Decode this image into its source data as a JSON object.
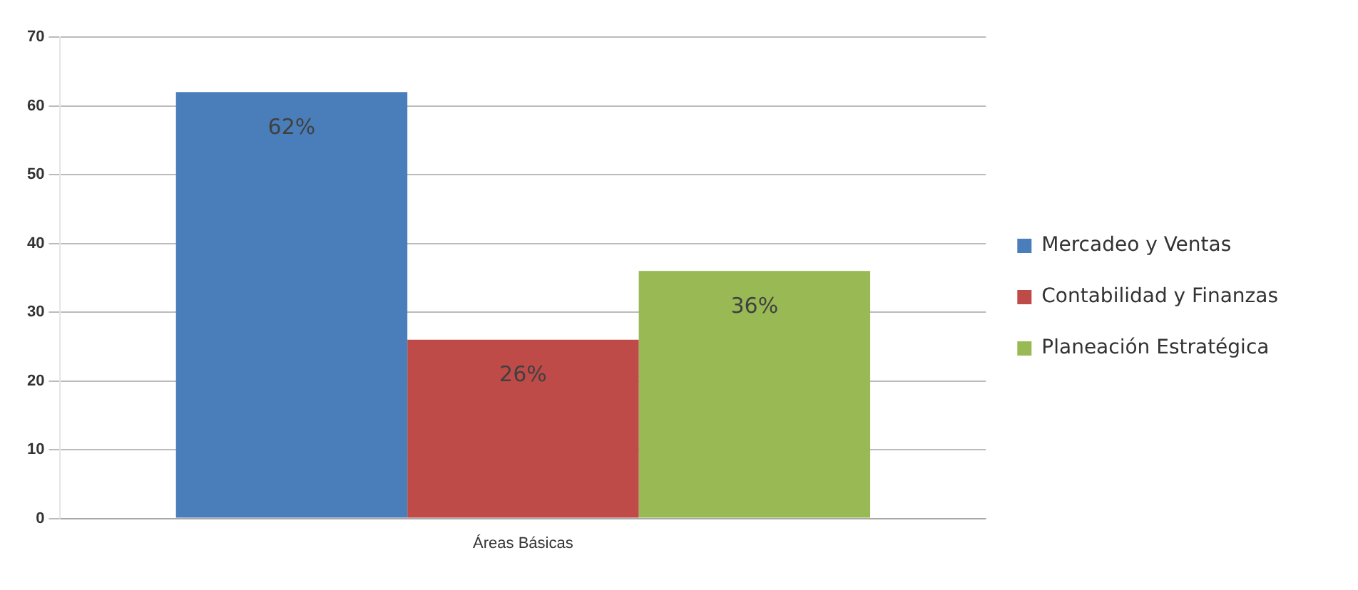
{
  "chart_data": {
    "type": "bar",
    "categories": [
      "Áreas Básicas"
    ],
    "series": [
      {
        "name": "Mercadeo y Ventas",
        "color": "#4a7ebb",
        "values": [
          62
        ],
        "value_labels": [
          "62%"
        ]
      },
      {
        "name": "Contabilidad y Finanzas",
        "color": "#be4b48",
        "values": [
          26
        ],
        "value_labels": [
          "26%"
        ]
      },
      {
        "name": "Planeación Estratégica",
        "color": "#98b954",
        "values": [
          36
        ],
        "value_labels": [
          "36%"
        ]
      }
    ],
    "ylim": [
      0,
      70
    ],
    "yticks": [
      0,
      10,
      20,
      30,
      40,
      50,
      60,
      70
    ],
    "grid": "y",
    "legend": "right"
  }
}
